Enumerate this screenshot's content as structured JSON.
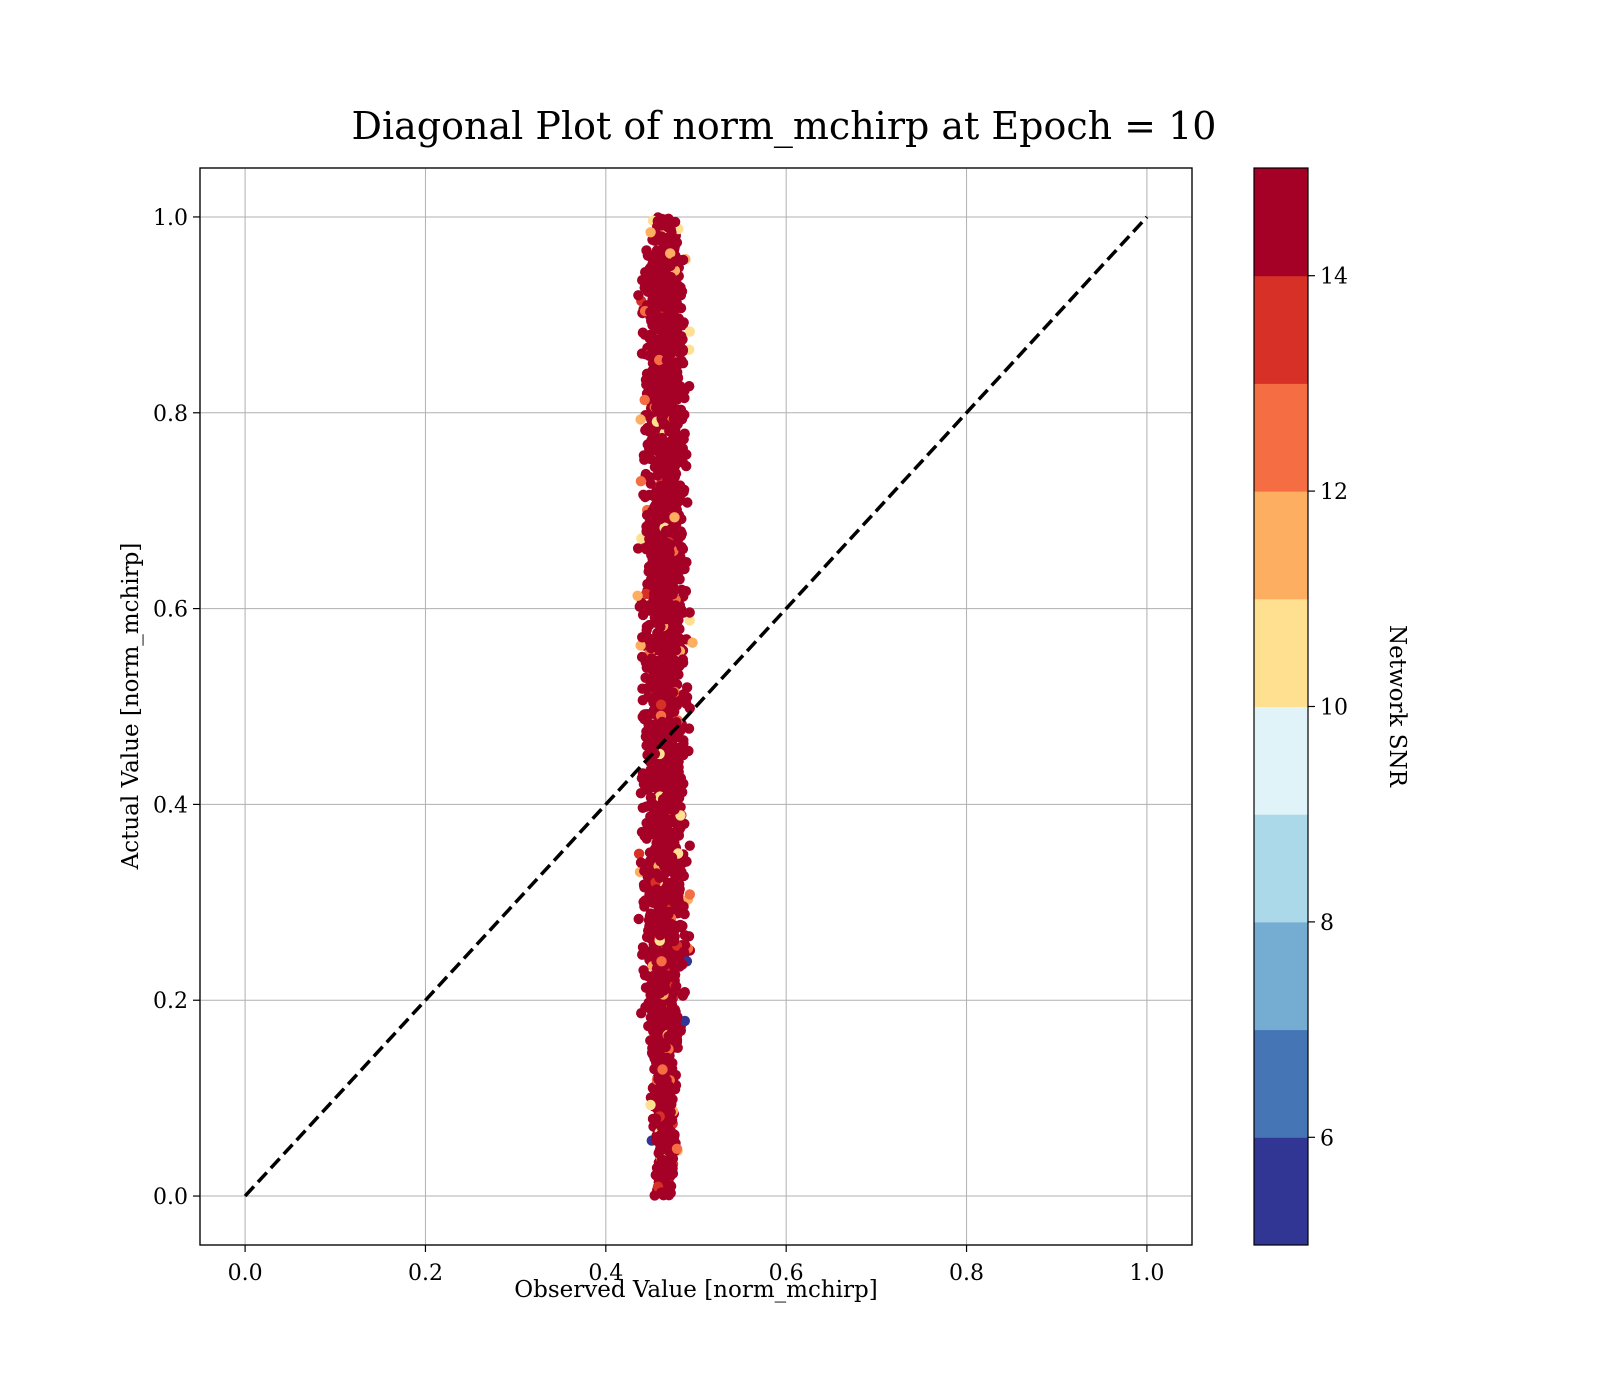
{
  "chart_data": {
    "type": "scatter",
    "title": "Diagonal Plot of norm_mchirp at Epoch = 10",
    "xlabel": "Observed Value [norm_mchirp]",
    "ylabel": "Actual Value [norm_mchirp]",
    "xlim": [
      -0.05,
      1.05
    ],
    "ylim": [
      -0.05,
      1.05
    ],
    "xticks": [
      "0.0",
      "0.2",
      "0.4",
      "0.6",
      "0.8",
      "1.0"
    ],
    "yticks": [
      "0.0",
      "0.2",
      "0.4",
      "0.6",
      "0.8",
      "1.0"
    ],
    "grid": true,
    "reference_line": {
      "style": "dashed",
      "color": "#000000",
      "x": [
        0.0,
        1.0
      ],
      "y": [
        0.0,
        1.0
      ]
    },
    "point_cloud": {
      "x_center": 0.465,
      "x_range": [
        0.42,
        0.51
      ],
      "y_range": [
        0.0,
        1.0
      ],
      "dominant_color": "#a50026",
      "description_colors": [
        "#a50026",
        "#d73027",
        "#f46d43",
        "#fdae61",
        "#fee090",
        "#313695"
      ]
    },
    "colorbar": {
      "label": "Network SNR",
      "range": [
        5,
        15
      ],
      "ticks": [
        "6",
        "8",
        "10",
        "12",
        "14"
      ],
      "tick_values": [
        6,
        8,
        10,
        12,
        14
      ],
      "colors": [
        "#313695",
        "#4575b4",
        "#74add1",
        "#abd9e9",
        "#e0f3f8",
        "#fee090",
        "#fdae61",
        "#f46d43",
        "#d73027",
        "#a50026"
      ]
    }
  }
}
